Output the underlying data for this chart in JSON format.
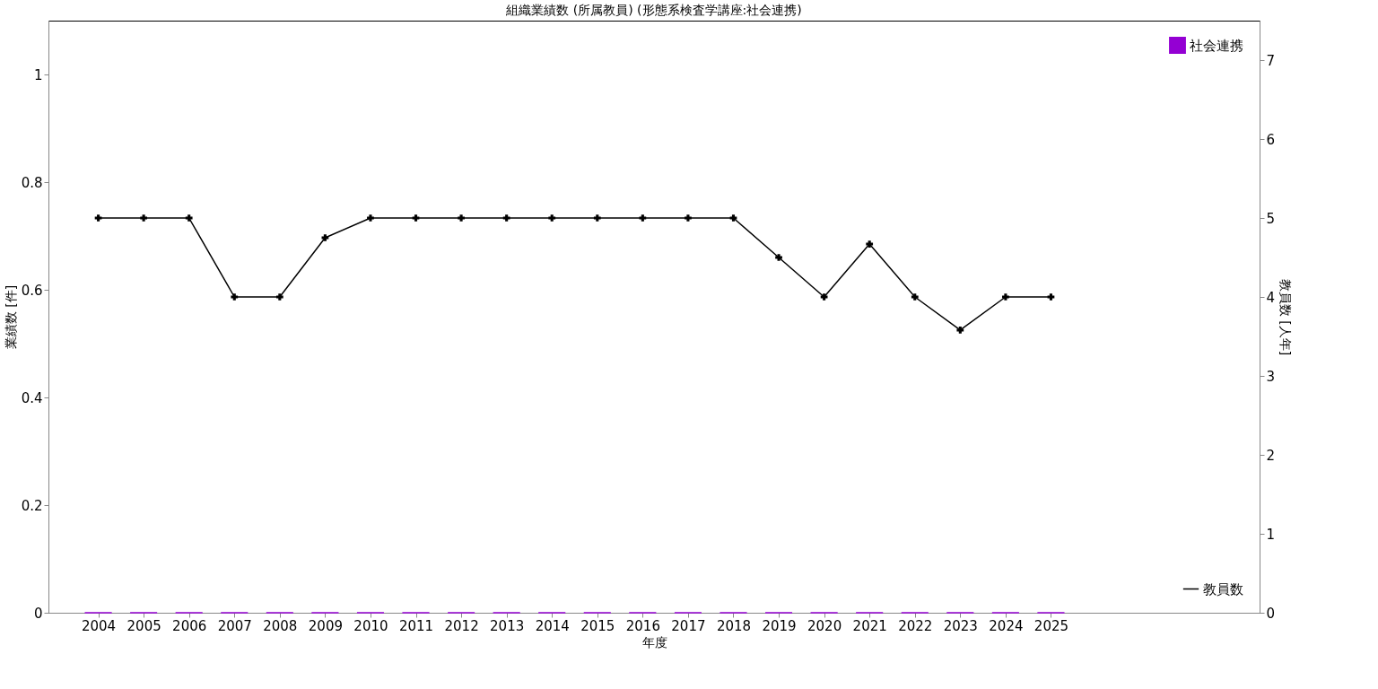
{
  "chart_data": {
    "type": "bar",
    "title": "組織業績数 (所属教員) (形態系検査学講座:社会連携)",
    "xlabel": "年度",
    "ylabel": "業績数 [件]",
    "y2label": "教員数 [人年]",
    "x": [
      2004,
      2005,
      2006,
      2007,
      2008,
      2009,
      2010,
      2011,
      2012,
      2013,
      2014,
      2015,
      2016,
      2017,
      2018,
      2019,
      2020,
      2021,
      2022,
      2023,
      2024,
      2025
    ],
    "xlim": [
      2003,
      2029.5
    ],
    "xticks": [
      2004,
      2005,
      2006,
      2007,
      2008,
      2009,
      2010,
      2011,
      2012,
      2013,
      2014,
      2015,
      2016,
      2017,
      2018,
      2019,
      2020,
      2021,
      2022,
      2023,
      2024,
      2025
    ],
    "ylim": [
      0,
      1.1
    ],
    "yticks": [
      0,
      0.2,
      0.4,
      0.6,
      0.8,
      1
    ],
    "y2lim": [
      0,
      7.5
    ],
    "y2ticks": [
      0,
      1,
      2,
      3,
      4,
      5,
      6,
      7
    ],
    "series": [
      {
        "name": "社会連携",
        "color": "#9400d3",
        "values": [
          0,
          0,
          0,
          0,
          0,
          0,
          0,
          0,
          0,
          0,
          0,
          0,
          0,
          0,
          0,
          0,
          0,
          0,
          0,
          0,
          0,
          0
        ]
      },
      {
        "name": "教員数",
        "type": "line",
        "axis": "y2",
        "color": "#000000",
        "marker": "cross",
        "line_style": "solid",
        "values": [
          5,
          5,
          5,
          4,
          4,
          4.75,
          5,
          5,
          5,
          5,
          5,
          5,
          5,
          5,
          5,
          4.5,
          4,
          4.67,
          4,
          3.58,
          4,
          4
        ]
      }
    ],
    "grid": false,
    "legend": "right"
  }
}
